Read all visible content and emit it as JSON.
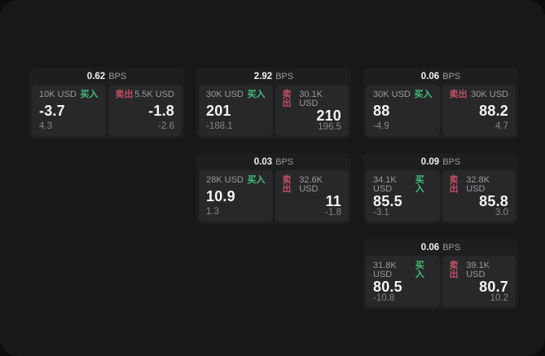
{
  "labels": {
    "bps_unit": "BPS",
    "buy": "买入",
    "sell": "卖出"
  },
  "colors": {
    "buy_green": "#3fc076",
    "sell_red": "#c25064",
    "screen_bg": "#18181a",
    "card_bg": "#1e1e20",
    "panel_bg": "#28282b",
    "price_text": "#f5f5f6",
    "muted_text": "#9a9a9e"
  },
  "cards": [
    {
      "row": 1,
      "col": 1,
      "bps": "0.62",
      "buy": {
        "amount": "10K USD",
        "price": "-3.7",
        "delta": "4.3"
      },
      "sell": {
        "amount": "5.5K USD",
        "price": "-1.8",
        "delta": "-2.6"
      }
    },
    {
      "row": 1,
      "col": 2,
      "bps": "2.92",
      "buy": {
        "amount": "30K USD",
        "price": "201",
        "delta": "-188.1"
      },
      "sell": {
        "amount": "30.1K USD",
        "price": "210",
        "delta": "196.5"
      }
    },
    {
      "row": 1,
      "col": 3,
      "bps": "0.06",
      "buy": {
        "amount": "30K USD",
        "price": "88",
        "delta": "-4.9"
      },
      "sell": {
        "amount": "30K USD",
        "price": "88.2",
        "delta": "4.7"
      }
    },
    {
      "row": 2,
      "col": 2,
      "bps": "0.03",
      "buy": {
        "amount": "28K USD",
        "price": "10.9",
        "delta": "1.3"
      },
      "sell": {
        "amount": "32.6K USD",
        "price": "11",
        "delta": "-1.8"
      }
    },
    {
      "row": 2,
      "col": 3,
      "bps": "0.09",
      "buy": {
        "amount": "34.1K USD",
        "price": "85.5",
        "delta": "-3.1"
      },
      "sell": {
        "amount": "32.8K USD",
        "price": "85.8",
        "delta": "3.0"
      }
    },
    {
      "row": 3,
      "col": 3,
      "bps": "0.06",
      "buy": {
        "amount": "31.8K USD",
        "price": "80.5",
        "delta": "-10.8"
      },
      "sell": {
        "amount": "39.1K USD",
        "price": "80.7",
        "delta": "10.2"
      }
    }
  ]
}
